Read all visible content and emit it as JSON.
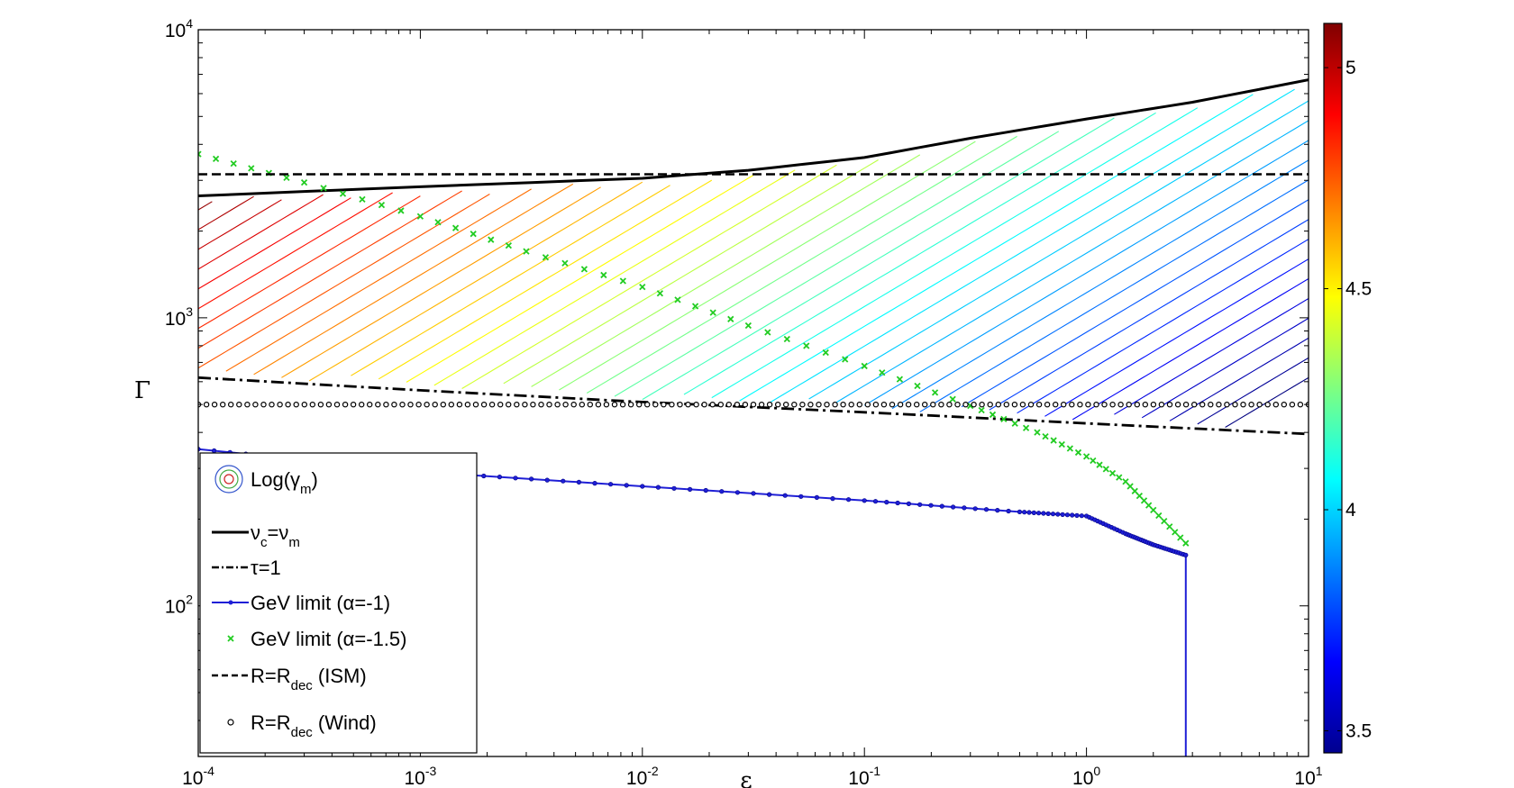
{
  "chart_data": {
    "type": "line",
    "xlabel": "ε",
    "ylabel": "Γ",
    "xscale": "log",
    "yscale": "log",
    "xlim": [
      0.0001,
      10
    ],
    "ylim": [
      30,
      10000
    ],
    "x_ticks": [
      {
        "base": "10",
        "exp": "-4"
      },
      {
        "base": "10",
        "exp": "-3"
      },
      {
        "base": "10",
        "exp": "-2"
      },
      {
        "base": "10",
        "exp": "-1"
      },
      {
        "base": "10",
        "exp": "0"
      },
      {
        "base": "10",
        "exp": "1"
      }
    ],
    "y_ticks": [
      {
        "base": "10",
        "exp": "2"
      },
      {
        "base": "10",
        "exp": "3"
      },
      {
        "base": "10",
        "exp": "4"
      }
    ],
    "series": [
      {
        "style": "solid-black",
        "x": [
          0.0001,
          0.001,
          0.01,
          0.03,
          0.1,
          0.3,
          1,
          3,
          10
        ],
        "y": [
          2650,
          2850,
          3050,
          3250,
          3600,
          4200,
          4900,
          5600,
          6700
        ]
      },
      {
        "style": "dashdot-black",
        "x": [
          0.0001,
          0.001,
          0.01,
          0.1,
          1,
          10
        ],
        "y": [
          620,
          560,
          510,
          470,
          430,
          395
        ]
      },
      {
        "style": "blue-dots",
        "x": [
          0.0001,
          0.001,
          0.01,
          0.1,
          0.5,
          1,
          1.5,
          2,
          2.8,
          2.8
        ],
        "y": [
          350,
          292,
          260,
          232,
          212,
          205,
          178,
          163,
          150,
          30
        ]
      },
      {
        "style": "green-x",
        "x": [
          0.0001,
          0.0003,
          0.001,
          0.003,
          0.01,
          0.03,
          0.1,
          0.3,
          0.6,
          1,
          1.5,
          2,
          2.8
        ],
        "y": [
          3700,
          2950,
          2250,
          1700,
          1280,
          940,
          680,
          495,
          400,
          330,
          270,
          215,
          165
        ]
      },
      {
        "style": "dashed-black",
        "x": [
          0.0001,
          10
        ],
        "y": [
          3150,
          3150
        ]
      },
      {
        "style": "black-circles",
        "x": [
          0.0001,
          10
        ],
        "y": [
          500,
          500
        ]
      }
    ],
    "contour": {
      "label_var": "Log(γm)",
      "levels_min": 3.45,
      "levels_max": 5.1,
      "count": 44,
      "slope_decades": 0.46
    },
    "colorbar": {
      "min": 3.45,
      "max": 5.1,
      "ticks": [
        "3.5",
        "4",
        "4.5",
        "5"
      ],
      "tick_values": [
        3.5,
        4.0,
        4.5,
        5.0
      ]
    },
    "legend": {
      "placement": "bottom-left",
      "entries": [
        {
          "symbol": "contour",
          "text": "Log(γ",
          "sub": "m",
          "after": ")"
        },
        {
          "symbol": "solid",
          "text": "ν",
          "sub": "c",
          "after": "=ν",
          "sub2": "m"
        },
        {
          "symbol": "dashdot",
          "text": "τ=1",
          "sub": "",
          "after": ""
        },
        {
          "symbol": "blue-dot-line",
          "text": "GeV limit (α=-1)",
          "sub": "",
          "after": ""
        },
        {
          "symbol": "green-x",
          "text": "GeV limit (α=-1.5)",
          "sub": "",
          "after": ""
        },
        {
          "symbol": "dashed",
          "text": "R=R",
          "sub": "dec",
          "after": " (ISM)"
        },
        {
          "symbol": "circle",
          "text": "R=R",
          "sub": "dec",
          "after": " (Wind)"
        }
      ]
    }
  }
}
